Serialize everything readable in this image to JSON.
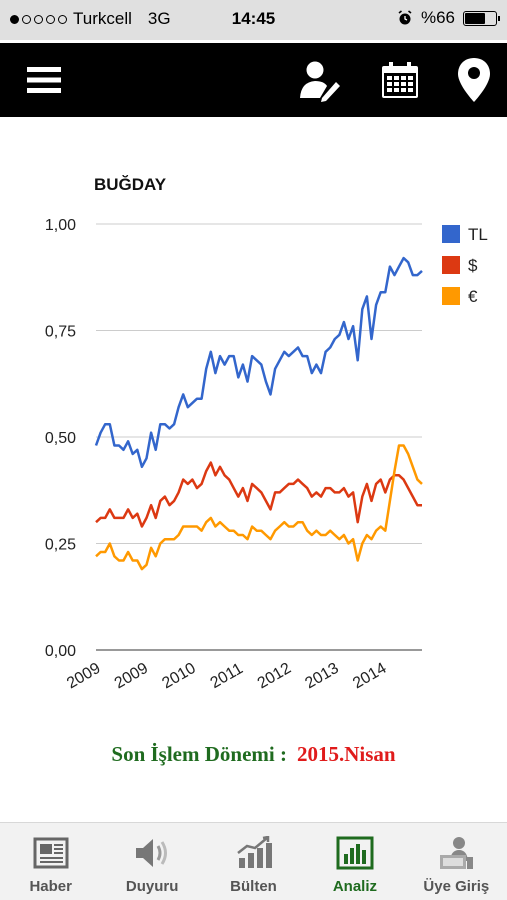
{
  "status_bar": {
    "carrier": "Turkcell",
    "network": "3G",
    "time": "14:45",
    "battery": "%66",
    "battery_level": 0.66
  },
  "header": {
    "menu_icon": "menu-icon",
    "user_icon": "user-edit-icon",
    "calendar_icon": "calendar-icon",
    "location_icon": "location-pin-icon"
  },
  "chart_data": {
    "type": "line",
    "title": "BUĞDAY",
    "x_tick_labels": [
      "2009",
      "2009",
      "2010",
      "2011",
      "2012",
      "2013",
      "2014"
    ],
    "y_tick_labels": [
      "0,00",
      "0,25",
      "0,50",
      "0,75",
      "1,00"
    ],
    "ylim": [
      0,
      1
    ],
    "grid": true,
    "legend_position": "right-top",
    "series": [
      {
        "name": "TL",
        "color": "#3366cc",
        "values": [
          0.48,
          0.51,
          0.53,
          0.53,
          0.48,
          0.48,
          0.47,
          0.49,
          0.46,
          0.47,
          0.43,
          0.45,
          0.51,
          0.47,
          0.53,
          0.53,
          0.52,
          0.53,
          0.57,
          0.6,
          0.57,
          0.58,
          0.59,
          0.59,
          0.66,
          0.7,
          0.65,
          0.69,
          0.67,
          0.69,
          0.69,
          0.64,
          0.67,
          0.63,
          0.69,
          0.68,
          0.67,
          0.63,
          0.6,
          0.66,
          0.68,
          0.7,
          0.69,
          0.7,
          0.71,
          0.69,
          0.69,
          0.65,
          0.67,
          0.65,
          0.7,
          0.71,
          0.73,
          0.74,
          0.77,
          0.73,
          0.76,
          0.68,
          0.8,
          0.83,
          0.73,
          0.81,
          0.84,
          0.84,
          0.9,
          0.88,
          0.9,
          0.92,
          0.91,
          0.88,
          0.88,
          0.89
        ]
      },
      {
        "name": "$",
        "color": "#dc3912",
        "values": [
          0.3,
          0.31,
          0.31,
          0.33,
          0.31,
          0.31,
          0.31,
          0.33,
          0.31,
          0.32,
          0.29,
          0.31,
          0.34,
          0.31,
          0.35,
          0.36,
          0.34,
          0.35,
          0.37,
          0.4,
          0.39,
          0.4,
          0.38,
          0.39,
          0.42,
          0.44,
          0.41,
          0.43,
          0.41,
          0.4,
          0.38,
          0.36,
          0.38,
          0.35,
          0.39,
          0.38,
          0.37,
          0.35,
          0.33,
          0.37,
          0.37,
          0.38,
          0.39,
          0.39,
          0.4,
          0.39,
          0.38,
          0.36,
          0.37,
          0.36,
          0.38,
          0.38,
          0.37,
          0.37,
          0.38,
          0.36,
          0.37,
          0.3,
          0.36,
          0.39,
          0.35,
          0.39,
          0.4,
          0.37,
          0.4,
          0.41,
          0.41,
          0.4,
          0.38,
          0.36,
          0.34,
          0.34
        ]
      },
      {
        "name": "€",
        "color": "#ff9900",
        "values": [
          0.22,
          0.23,
          0.23,
          0.25,
          0.22,
          0.21,
          0.21,
          0.23,
          0.21,
          0.21,
          0.19,
          0.2,
          0.24,
          0.22,
          0.25,
          0.26,
          0.26,
          0.26,
          0.27,
          0.29,
          0.29,
          0.29,
          0.29,
          0.28,
          0.3,
          0.31,
          0.29,
          0.3,
          0.29,
          0.28,
          0.28,
          0.27,
          0.27,
          0.26,
          0.29,
          0.28,
          0.28,
          0.27,
          0.26,
          0.28,
          0.29,
          0.3,
          0.29,
          0.29,
          0.3,
          0.3,
          0.28,
          0.27,
          0.28,
          0.27,
          0.27,
          0.28,
          0.27,
          0.26,
          0.27,
          0.25,
          0.26,
          0.21,
          0.25,
          0.27,
          0.26,
          0.28,
          0.29,
          0.28,
          0.35,
          0.42,
          0.48,
          0.48,
          0.46,
          0.43,
          0.4,
          0.39
        ]
      }
    ]
  },
  "last_period": {
    "label": "Son İşlem Dönemi :",
    "value": "2015.Nisan"
  },
  "tabs": [
    {
      "label": "Haber",
      "icon": "newspaper-icon"
    },
    {
      "label": "Duyuru",
      "icon": "speaker-icon"
    },
    {
      "label": "Bülten",
      "icon": "bar-chart-growth-icon"
    },
    {
      "label": "Analiz",
      "icon": "analysis-chart-icon",
      "active": true
    },
    {
      "label": "Üye Giriş",
      "icon": "member-login-icon"
    }
  ]
}
